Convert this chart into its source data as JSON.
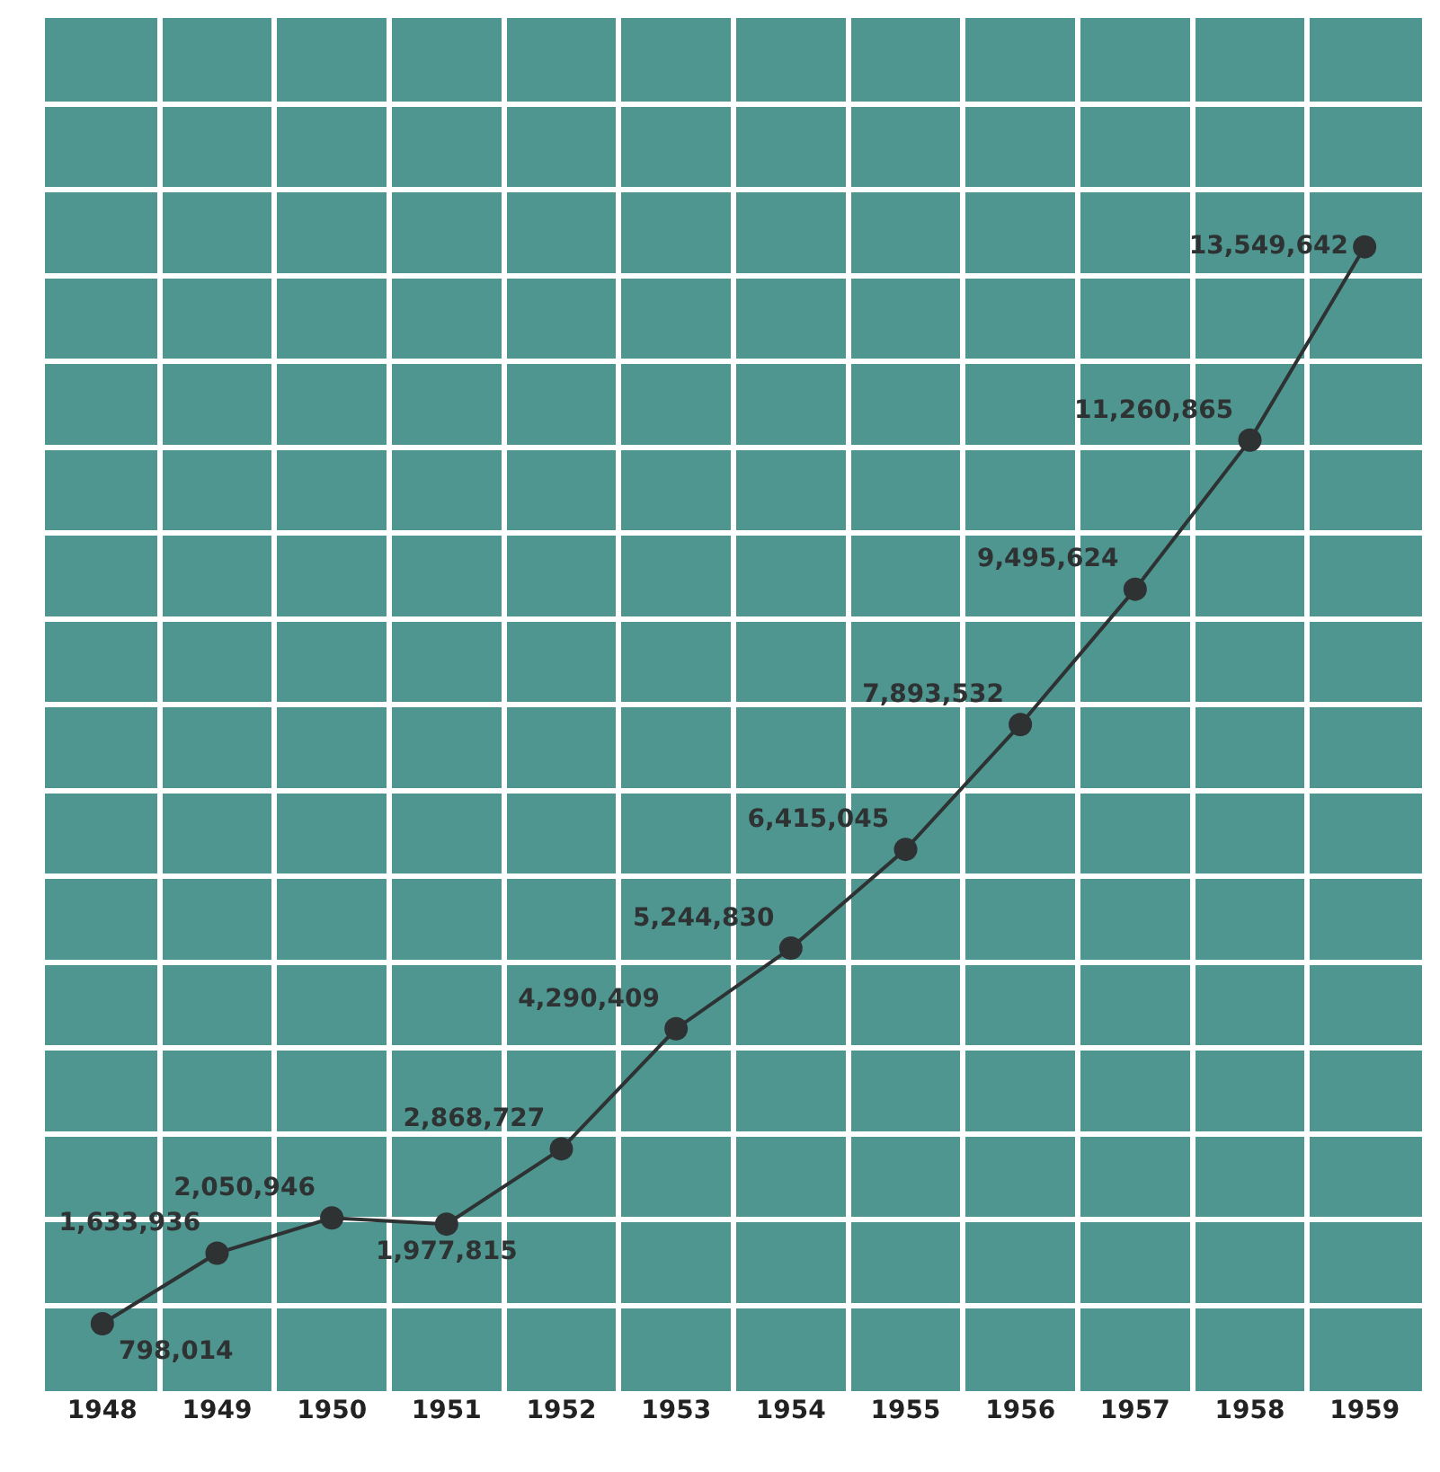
{
  "chart_data": {
    "type": "line",
    "categories": [
      "1948",
      "1949",
      "1950",
      "1951",
      "1952",
      "1953",
      "1954",
      "1955",
      "1956",
      "1957",
      "1958",
      "1959"
    ],
    "series": [
      {
        "color": "#2e3233",
        "values": [
          798014,
          1633936,
          2050946,
          1977815,
          2868727,
          4290409,
          5244830,
          6415045,
          7893532,
          9495624,
          11260865,
          13549642
        ],
        "value_labels": [
          "798,014",
          "1,633,936",
          "2,050,946",
          "1,977,815",
          "2,868,727",
          "4,290,409",
          "5,244,830",
          "6,415,045",
          "7,893,532",
          "9,495,624",
          "11,260,865",
          "13,549,642"
        ]
      }
    ],
    "tick_labels": "x",
    "grid": true,
    "marker": "circle",
    "line_style": "solid"
  }
}
